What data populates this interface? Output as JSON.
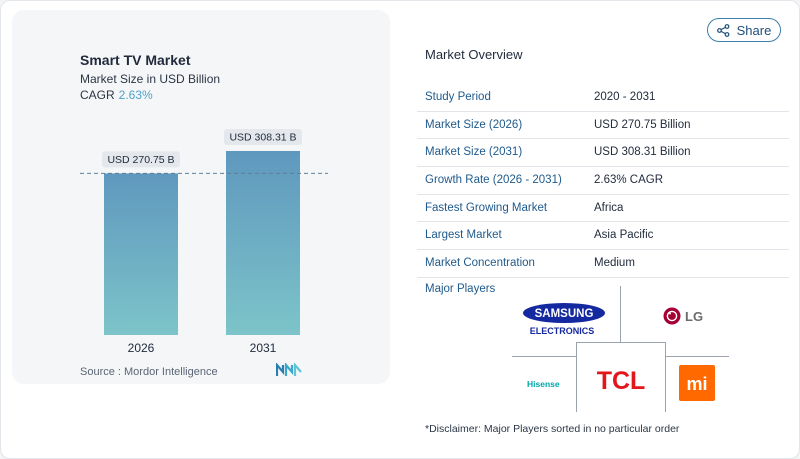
{
  "chart_data": {
    "type": "bar",
    "title": "Smart TV Market",
    "subtitle": "Market Size in USD Billion",
    "cagr_label": "CAGR",
    "cagr_value": "2.63%",
    "categories": [
      "2026",
      "2031"
    ],
    "values": [
      270.75,
      308.31
    ],
    "value_labels": [
      "USD 270.75 B",
      "USD 308.31 B"
    ],
    "ylim": [
      0,
      308.31
    ],
    "grid": false,
    "reference_line": 270.75,
    "bar_gradient": [
      "#5f98be",
      "#7cc4c9"
    ],
    "label_bg": "#e4e7eb"
  },
  "source": "Source :  Mordor Intelligence",
  "share_label": "Share",
  "overview": {
    "heading": "Market Overview",
    "rows": [
      {
        "label": "Study Period",
        "value": "2020 - 2031"
      },
      {
        "label": "Market Size (2026)",
        "value": "USD 270.75 Billion"
      },
      {
        "label": "Market Size (2031)",
        "value": "USD 308.31 Billion"
      },
      {
        "label": "Growth Rate (2026 - 2031)",
        "value": "2.63% CAGR"
      },
      {
        "label": "Fastest Growing Market",
        "value": "Africa"
      },
      {
        "label": "Largest Market",
        "value": "Asia Pacific"
      },
      {
        "label": "Market Concentration",
        "value": "Medium"
      }
    ],
    "players_heading": "Major Players"
  },
  "players": {
    "samsung_line1": "SAMSUNG",
    "samsung_line2": "ELECTRONICS",
    "lg": "LG",
    "hisense": "Hisense",
    "tcl": "TCL",
    "xiaomi": "mi"
  },
  "disclaimer": "*Disclaimer: Major Players sorted in no particular order",
  "colors": {
    "accent": "#1f5a8c",
    "cagr": "#4fa3c7",
    "samsung": "#1428a0",
    "lg": "#a50034",
    "tcl": "#e3161b",
    "xiaomi": "#ff6900",
    "hisense": "#00a6a6"
  },
  "icons": {
    "share": "share-icon",
    "source_logo": "mordor-logo-icon"
  }
}
